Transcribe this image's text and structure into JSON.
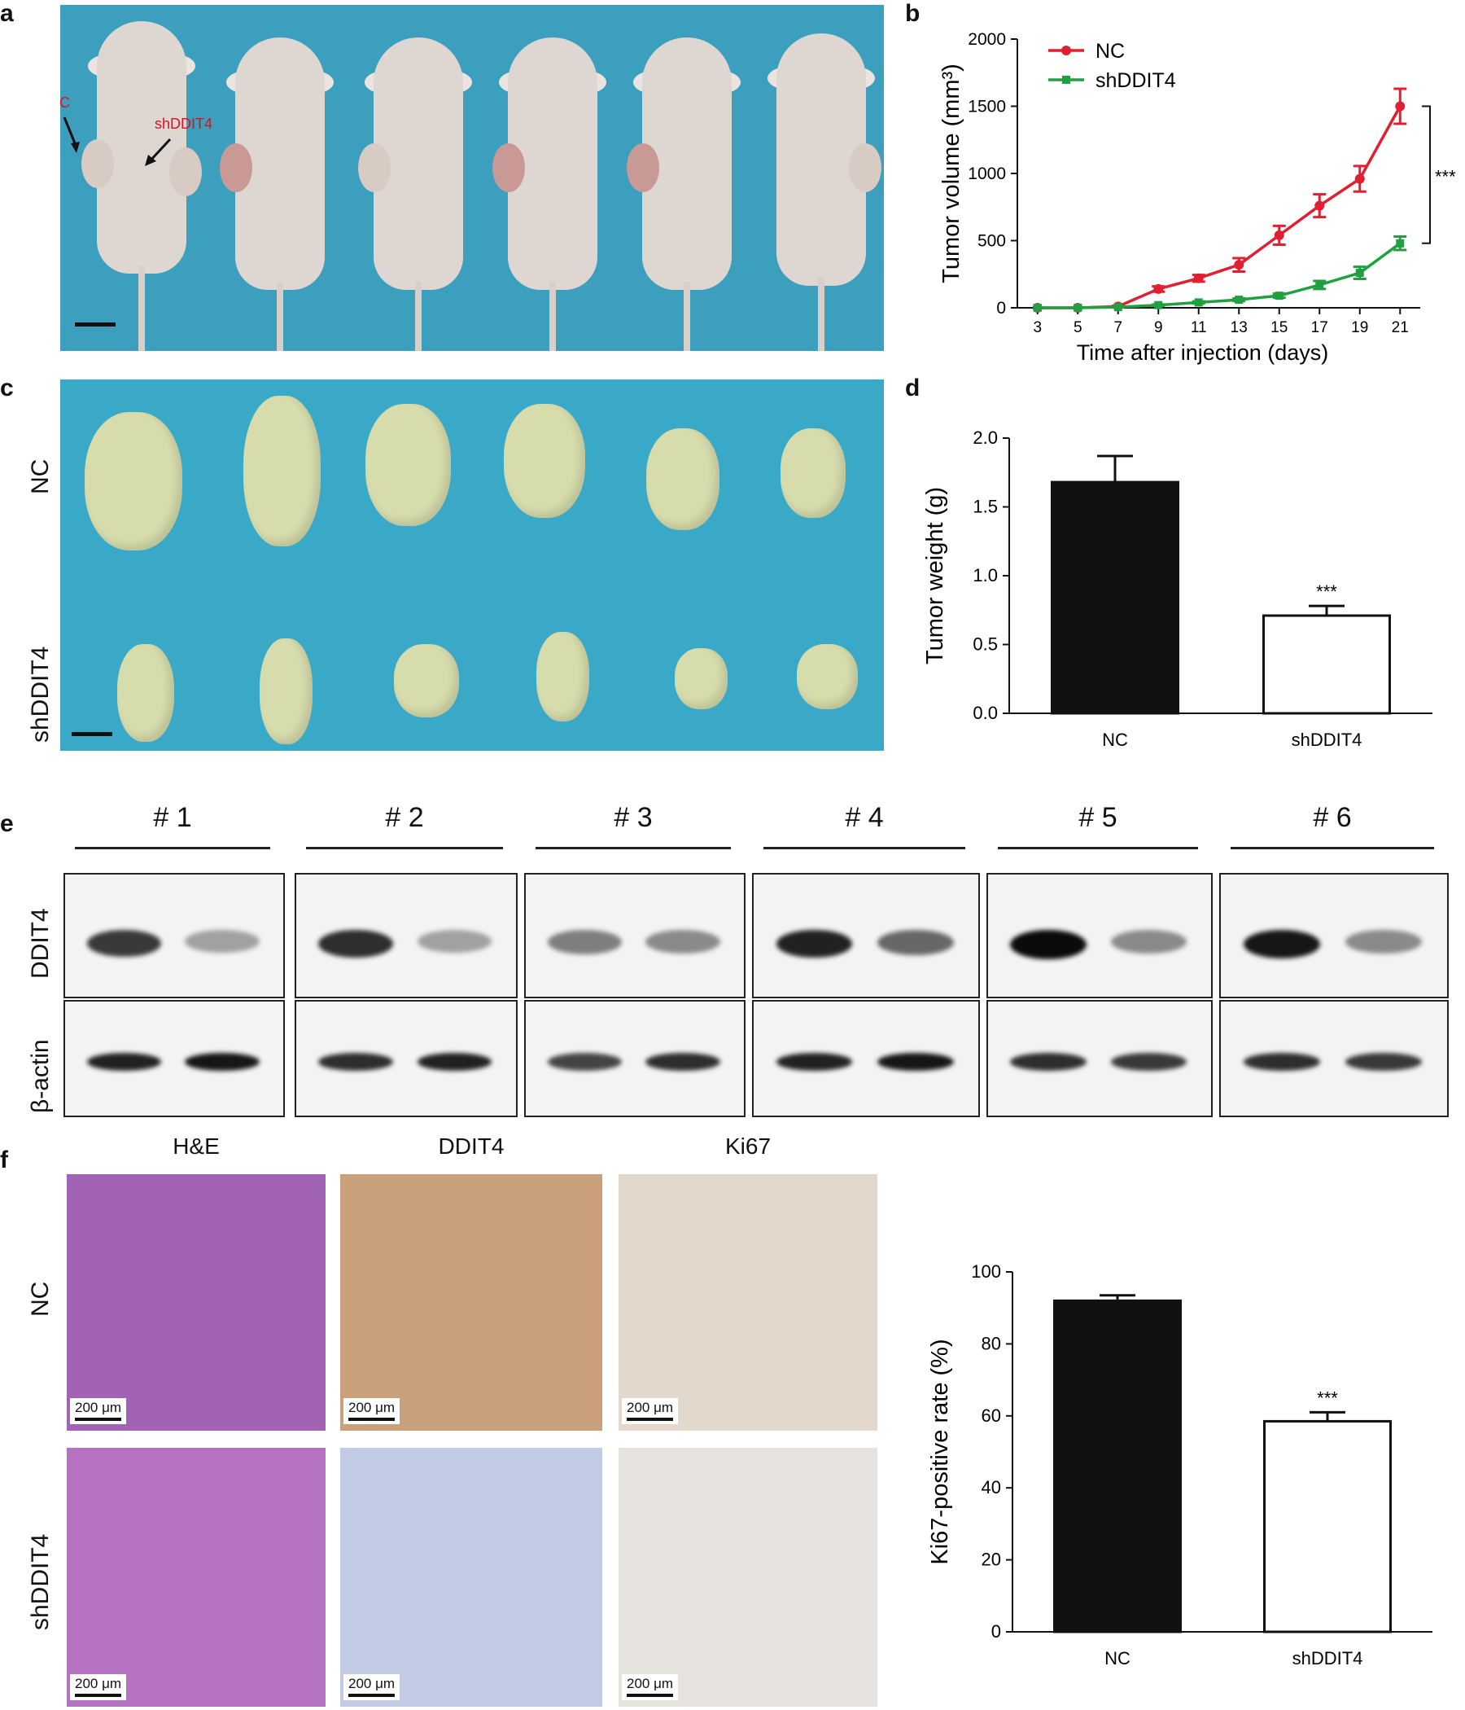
{
  "panel_labels": {
    "a": "a",
    "b": "b",
    "c": "c",
    "d": "d",
    "e": "e",
    "f": "f"
  },
  "panel_a": {
    "arrow_nc": "NC",
    "arrow_sh": "shDDIT4"
  },
  "panel_c": {
    "row_nc": "NC",
    "row_sh": "shDDIT4"
  },
  "panel_e": {
    "groups": [
      "# 1",
      "# 2",
      "# 3",
      "# 4",
      "# 5",
      "# 6"
    ],
    "row_ddit4": "DDIT4",
    "row_actin": "β-actin"
  },
  "panel_f": {
    "col_he": "H&E",
    "col_ddit4": "DDIT4",
    "col_ki67": "Ki67",
    "row_nc": "NC",
    "row_sh": "shDDIT4",
    "scale": "200 μm"
  },
  "chart_data": [
    {
      "id": "b",
      "type": "line",
      "xlabel": "Time after injection (days)",
      "ylabel": "Tumor volume (mm³)",
      "x": [
        3,
        5,
        7,
        9,
        11,
        13,
        15,
        17,
        19,
        21
      ],
      "xticks": [
        "3",
        "5",
        "7",
        "9",
        "11",
        "13",
        "15",
        "17",
        "19",
        "21"
      ],
      "ylim": [
        0,
        2000
      ],
      "yticks": [
        "0",
        "500",
        "1000",
        "1500",
        "2000"
      ],
      "series": [
        {
          "name": "NC",
          "color": "#e02030",
          "values": [
            0,
            0,
            10,
            140,
            220,
            320,
            540,
            760,
            960,
            1500
          ],
          "err": [
            0,
            0,
            5,
            20,
            25,
            50,
            70,
            85,
            95,
            130
          ]
        },
        {
          "name": "shDDIT4",
          "color": "#20a040",
          "values": [
            0,
            0,
            5,
            20,
            40,
            60,
            90,
            170,
            260,
            480
          ],
          "err": [
            0,
            0,
            3,
            5,
            8,
            10,
            15,
            30,
            45,
            50
          ]
        }
      ],
      "legend": "top-left",
      "significance": "***"
    },
    {
      "id": "d",
      "type": "bar",
      "categories": [
        "NC",
        "shDDIT4"
      ],
      "values": [
        1.68,
        0.71
      ],
      "err": [
        0.19,
        0.07
      ],
      "colors": [
        "#111111",
        "#ffffff"
      ],
      "ylabel": "Tumor weight (g)",
      "ylim": [
        0,
        2.0
      ],
      "yticks": [
        "0.0",
        "0.5",
        "1.0",
        "1.5",
        "2.0"
      ],
      "significance": "***"
    },
    {
      "id": "f",
      "type": "bar",
      "categories": [
        "NC",
        "shDDIT4"
      ],
      "values": [
        92,
        58.5
      ],
      "err": [
        1.5,
        2.5
      ],
      "colors": [
        "#111111",
        "#ffffff"
      ],
      "ylabel": "Ki67-positive rate (%)",
      "ylim": [
        0,
        100
      ],
      "yticks": [
        "0",
        "20",
        "40",
        "60",
        "80",
        "100"
      ],
      "significance": "***"
    }
  ]
}
